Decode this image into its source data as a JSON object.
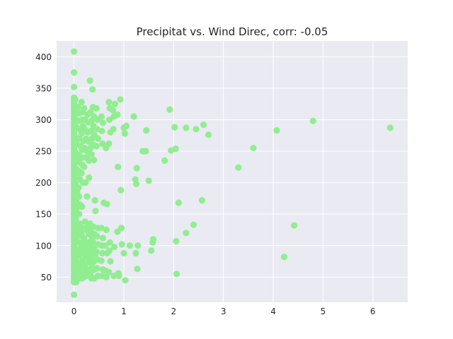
{
  "chart_data": {
    "type": "scatter",
    "title": "Precipitat vs. Wind Direc, corr: -0.05",
    "xlabel": "",
    "ylabel": "",
    "xlim": [
      -0.35,
      6.7
    ],
    "ylim": [
      10,
      425
    ],
    "xticks": [
      0,
      1,
      2,
      3,
      4,
      5,
      6
    ],
    "yticks": [
      50,
      100,
      150,
      200,
      250,
      300,
      350,
      400
    ],
    "grid": true,
    "legend": "none",
    "colors": {
      "point": "#90ee90",
      "background": "#eaeaf2",
      "grid": "#ffffff",
      "text": "#262626"
    },
    "points": [
      [
        0,
        408
      ],
      [
        0,
        375
      ],
      [
        0,
        352
      ],
      [
        0,
        335
      ],
      [
        0,
        330
      ],
      [
        0,
        325
      ],
      [
        0,
        320
      ],
      [
        0,
        315
      ],
      [
        0,
        310
      ],
      [
        0,
        305
      ],
      [
        0,
        300
      ],
      [
        0,
        295
      ],
      [
        0,
        290
      ],
      [
        0,
        285
      ],
      [
        0,
        280
      ],
      [
        0,
        275
      ],
      [
        0,
        270
      ],
      [
        0,
        265
      ],
      [
        0,
        260
      ],
      [
        0,
        255
      ],
      [
        0,
        250
      ],
      [
        0,
        245
      ],
      [
        0,
        240
      ],
      [
        0,
        235
      ],
      [
        0,
        230
      ],
      [
        0,
        225
      ],
      [
        0,
        220
      ],
      [
        0,
        215
      ],
      [
        0,
        210
      ],
      [
        0,
        205
      ],
      [
        0,
        200
      ],
      [
        0,
        195
      ],
      [
        0,
        190
      ],
      [
        0,
        185
      ],
      [
        0,
        180
      ],
      [
        0,
        175
      ],
      [
        0,
        170
      ],
      [
        0,
        165
      ],
      [
        0,
        160
      ],
      [
        0,
        155
      ],
      [
        0,
        150
      ],
      [
        0,
        145
      ],
      [
        0,
        140
      ],
      [
        0,
        135
      ],
      [
        0,
        130
      ],
      [
        0,
        125
      ],
      [
        0,
        120
      ],
      [
        0,
        115
      ],
      [
        0,
        110
      ],
      [
        0,
        105
      ],
      [
        0,
        100
      ],
      [
        0,
        95
      ],
      [
        0,
        90
      ],
      [
        0,
        85
      ],
      [
        0,
        80
      ],
      [
        0,
        75
      ],
      [
        0,
        70
      ],
      [
        0,
        65
      ],
      [
        0,
        60
      ],
      [
        0,
        55
      ],
      [
        0,
        50
      ],
      [
        0,
        45
      ],
      [
        0,
        42
      ],
      [
        0,
        22
      ],
      [
        0.02,
        332
      ],
      [
        0.03,
        318
      ],
      [
        0.04,
        300
      ],
      [
        0.05,
        288
      ],
      [
        0.02,
        272
      ],
      [
        0.05,
        262
      ],
      [
        0.03,
        248
      ],
      [
        0.06,
        238
      ],
      [
        0.04,
        222
      ],
      [
        0.05,
        212
      ],
      [
        0.03,
        198
      ],
      [
        0.06,
        185
      ],
      [
        0.04,
        172
      ],
      [
        0.05,
        158
      ],
      [
        0.03,
        142
      ],
      [
        0.06,
        128
      ],
      [
        0.04,
        118
      ],
      [
        0.05,
        108
      ],
      [
        0.03,
        96
      ],
      [
        0.06,
        86
      ],
      [
        0.04,
        76
      ],
      [
        0.05,
        66
      ],
      [
        0.03,
        56
      ],
      [
        0.06,
        48
      ],
      [
        0.04,
        42
      ],
      [
        0.08,
        320
      ],
      [
        0.1,
        310
      ],
      [
        0.09,
        298
      ],
      [
        0.12,
        285
      ],
      [
        0.1,
        270
      ],
      [
        0.13,
        258
      ],
      [
        0.09,
        244
      ],
      [
        0.11,
        232
      ],
      [
        0.1,
        218
      ],
      [
        0.12,
        205
      ],
      [
        0.09,
        192
      ],
      [
        0.1,
        178
      ],
      [
        0.12,
        165
      ],
      [
        0.1,
        150
      ],
      [
        0.11,
        135
      ],
      [
        0.13,
        125
      ],
      [
        0.09,
        115
      ],
      [
        0.12,
        104
      ],
      [
        0.1,
        94
      ],
      [
        0.11,
        84
      ],
      [
        0.13,
        72
      ],
      [
        0.1,
        62
      ],
      [
        0.12,
        52
      ],
      [
        0.09,
        48
      ],
      [
        0.15,
        328
      ],
      [
        0.17,
        312
      ],
      [
        0.16,
        300
      ],
      [
        0.18,
        290
      ],
      [
        0.15,
        278
      ],
      [
        0.19,
        266
      ],
      [
        0.16,
        252
      ],
      [
        0.18,
        240
      ],
      [
        0.17,
        228
      ],
      [
        0.15,
        215
      ],
      [
        0.18,
        200
      ],
      [
        0.16,
        162
      ],
      [
        0.17,
        128
      ],
      [
        0.15,
        118
      ],
      [
        0.19,
        108
      ],
      [
        0.16,
        98
      ],
      [
        0.18,
        88
      ],
      [
        0.17,
        76
      ],
      [
        0.15,
        66
      ],
      [
        0.18,
        56
      ],
      [
        0.16,
        48
      ],
      [
        0.2,
        318
      ],
      [
        0.22,
        300
      ],
      [
        0.21,
        285
      ],
      [
        0.24,
        270
      ],
      [
        0.22,
        255
      ],
      [
        0.25,
        240
      ],
      [
        0.2,
        225
      ],
      [
        0.23,
        200
      ],
      [
        0.22,
        138
      ],
      [
        0.25,
        125
      ],
      [
        0.2,
        112
      ],
      [
        0.23,
        102
      ],
      [
        0.21,
        92
      ],
      [
        0.24,
        82
      ],
      [
        0.22,
        70
      ],
      [
        0.25,
        60
      ],
      [
        0.2,
        50
      ],
      [
        0.27,
        308
      ],
      [
        0.29,
        296
      ],
      [
        0.28,
        280
      ],
      [
        0.3,
        265
      ],
      [
        0.27,
        250
      ],
      [
        0.3,
        235
      ],
      [
        0.26,
        178
      ],
      [
        0.3,
        208
      ],
      [
        0.28,
        130
      ],
      [
        0.3,
        118
      ],
      [
        0.27,
        105
      ],
      [
        0.29,
        95
      ],
      [
        0.28,
        85
      ],
      [
        0.3,
        74
      ],
      [
        0.27,
        62
      ],
      [
        0.29,
        52
      ],
      [
        0.32,
        362
      ],
      [
        0.33,
        312
      ],
      [
        0.35,
        298
      ],
      [
        0.34,
        282
      ],
      [
        0.36,
        270
      ],
      [
        0.33,
        255
      ],
      [
        0.35,
        245
      ],
      [
        0.32,
        135
      ],
      [
        0.34,
        122
      ],
      [
        0.36,
        110
      ],
      [
        0.33,
        100
      ],
      [
        0.35,
        90
      ],
      [
        0.34,
        80
      ],
      [
        0.36,
        66
      ],
      [
        0.33,
        56
      ],
      [
        0.35,
        48
      ],
      [
        0.37,
        348
      ],
      [
        0.38,
        320
      ],
      [
        0.4,
        305
      ],
      [
        0.39,
        290
      ],
      [
        0.41,
        275
      ],
      [
        0.38,
        260
      ],
      [
        0.4,
        236
      ],
      [
        0.42,
        172
      ],
      [
        0.43,
        155
      ],
      [
        0.39,
        130
      ],
      [
        0.41,
        118
      ],
      [
        0.38,
        106
      ],
      [
        0.4,
        96
      ],
      [
        0.42,
        86
      ],
      [
        0.39,
        74
      ],
      [
        0.41,
        62
      ],
      [
        0.4,
        48
      ],
      [
        0.45,
        318
      ],
      [
        0.47,
        300
      ],
      [
        0.46,
        285
      ],
      [
        0.48,
        270
      ],
      [
        0.45,
        258
      ],
      [
        0.47,
        128
      ],
      [
        0.46,
        115
      ],
      [
        0.48,
        102
      ],
      [
        0.45,
        90
      ],
      [
        0.47,
        78
      ],
      [
        0.46,
        64
      ],
      [
        0.48,
        52
      ],
      [
        0.55,
        305
      ],
      [
        0.58,
        295
      ],
      [
        0.56,
        282
      ],
      [
        0.57,
        262
      ],
      [
        0.6,
        168
      ],
      [
        0.55,
        128
      ],
      [
        0.58,
        112
      ],
      [
        0.56,
        100
      ],
      [
        0.57,
        88
      ],
      [
        0.55,
        76
      ],
      [
        0.58,
        62
      ],
      [
        0.56,
        52
      ],
      [
        0.64,
        255
      ],
      [
        0.66,
        166
      ],
      [
        0.65,
        125
      ],
      [
        0.63,
        100
      ],
      [
        0.66,
        88
      ],
      [
        0.64,
        60
      ],
      [
        0.65,
        50
      ],
      [
        0.7,
        328
      ],
      [
        0.72,
        318
      ],
      [
        0.71,
        300
      ],
      [
        0.73,
        280
      ],
      [
        0.7,
        262
      ],
      [
        0.72,
        105
      ],
      [
        0.71,
        92
      ],
      [
        0.73,
        75
      ],
      [
        0.7,
        58
      ],
      [
        0.78,
        315
      ],
      [
        0.8,
        305
      ],
      [
        0.82,
        325
      ],
      [
        0.79,
        285
      ],
      [
        0.81,
        98
      ],
      [
        0.8,
        52
      ],
      [
        0.87,
        308
      ],
      [
        0.88,
        225
      ],
      [
        0.87,
        122
      ],
      [
        0.89,
        56
      ],
      [
        0.9,
        52
      ],
      [
        0.93,
        332
      ],
      [
        0.94,
        188
      ],
      [
        0.95,
        128
      ],
      [
        0.96,
        102
      ],
      [
        1.0,
        287
      ],
      [
        1.02,
        278
      ],
      [
        1.05,
        290
      ],
      [
        1.0,
        88
      ],
      [
        1.03,
        45
      ],
      [
        1.12,
        100
      ],
      [
        1.2,
        305
      ],
      [
        1.23,
        205
      ],
      [
        1.25,
        198
      ],
      [
        1.26,
        223
      ],
      [
        1.24,
        88
      ],
      [
        1.28,
        100
      ],
      [
        1.27,
        63
      ],
      [
        1.38,
        250
      ],
      [
        1.44,
        250
      ],
      [
        1.45,
        283
      ],
      [
        1.5,
        203
      ],
      [
        1.55,
        92
      ],
      [
        1.58,
        105
      ],
      [
        1.59,
        110
      ],
      [
        1.82,
        235
      ],
      [
        1.92,
        316
      ],
      [
        1.95,
        251
      ],
      [
        2.02,
        288
      ],
      [
        2.04,
        254
      ],
      [
        2.05,
        107
      ],
      [
        2.06,
        55
      ],
      [
        2.1,
        168
      ],
      [
        2.25,
        287
      ],
      [
        2.25,
        120
      ],
      [
        2.4,
        133
      ],
      [
        2.45,
        285
      ],
      [
        2.57,
        172
      ],
      [
        2.6,
        292
      ],
      [
        2.7,
        276
      ],
      [
        3.3,
        224
      ],
      [
        3.6,
        255
      ],
      [
        4.07,
        283
      ],
      [
        4.22,
        82
      ],
      [
        4.42,
        132
      ],
      [
        4.8,
        298
      ],
      [
        6.35,
        287
      ]
    ]
  }
}
